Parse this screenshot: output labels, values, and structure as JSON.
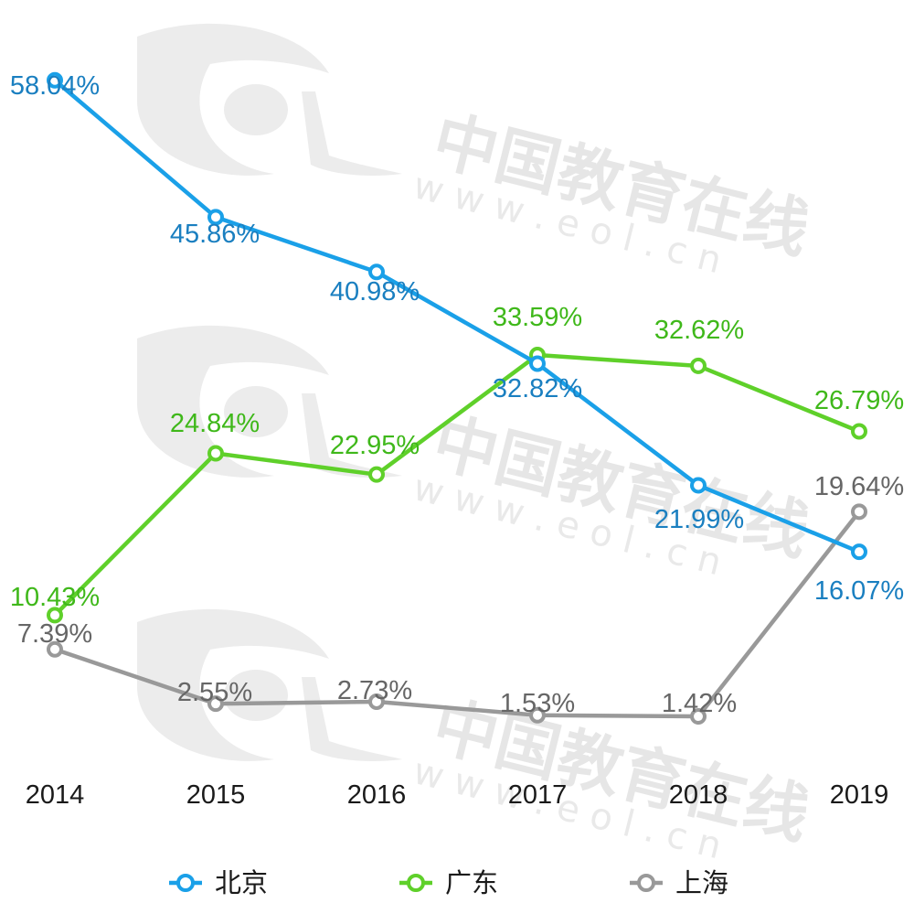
{
  "chart_data": {
    "type": "line",
    "categories": [
      "2014",
      "2015",
      "2016",
      "2017",
      "2018",
      "2019"
    ],
    "series": [
      {
        "name": "北京",
        "color": "#1aa0e8",
        "label_color": "#1a7fc0",
        "values": [
          58.04,
          45.86,
          40.98,
          32.82,
          21.99,
          16.07
        ],
        "labels": [
          "58.04%",
          "45.86%",
          "40.98%",
          "32.82%",
          "21.99%",
          "16.07%"
        ]
      },
      {
        "name": "广东",
        "color": "#5fd02a",
        "label_color": "#3fb81a",
        "values": [
          10.43,
          24.84,
          22.95,
          33.59,
          32.62,
          26.79
        ],
        "labels": [
          "10.43%",
          "24.84%",
          "22.95%",
          "33.59%",
          "32.62%",
          "26.79%"
        ]
      },
      {
        "name": "上海",
        "color": "#999999",
        "label_color": "#666666",
        "values": [
          7.39,
          2.55,
          2.73,
          1.53,
          1.42,
          19.64
        ],
        "labels": [
          "7.39%",
          "2.55%",
          "2.73%",
          "1.53%",
          "1.42%",
          "19.64%"
        ]
      }
    ],
    "legend_position": "bottom",
    "grid": false
  },
  "watermark": {
    "brand": "中国教育在线",
    "url": "w w w . e o l . c n"
  }
}
